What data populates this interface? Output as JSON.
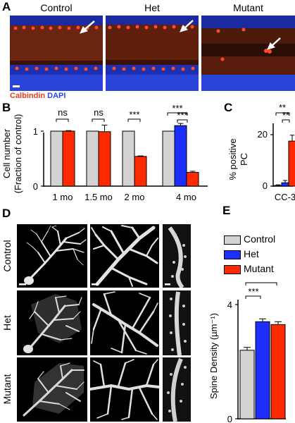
{
  "panels": {
    "A": {
      "label": "A",
      "columns": [
        "Control",
        "Het",
        "Mutant"
      ],
      "stain_calbindin": "Calbindin",
      "stain_dapi": "DAPI",
      "colors": {
        "calbindin": "#e83a1f",
        "dapi": "#2446ff",
        "background": "#2a0e08"
      }
    },
    "B": {
      "label": "B",
      "ylabel_line1": "Cell number",
      "ylabel_line2": "(Fraction of control)",
      "yticks": [
        "0",
        "1"
      ],
      "significance": [
        "ns",
        "ns",
        "***",
        "***",
        "***"
      ]
    },
    "C": {
      "label": "C",
      "ylabel_line1": "% positive",
      "ylabel_line2": "PC",
      "yticks": [
        "0",
        "20"
      ],
      "significance": [
        "**",
        "**"
      ]
    },
    "D": {
      "label": "D",
      "rows": [
        "Control",
        "Het",
        "Mutant"
      ]
    },
    "E": {
      "label": "E",
      "ylabel": "Spine Density (µm⁻¹)",
      "yticks": [
        "0",
        "4"
      ],
      "significance": [
        "***",
        "***"
      ],
      "legend": [
        "Control",
        "Het",
        "Mutant"
      ]
    }
  },
  "colors": {
    "control": "#d3d3d3",
    "het": "#1c2fff",
    "mutant": "#ff2a00"
  },
  "chart_data": [
    {
      "panel": "B",
      "type": "bar",
      "categories": [
        "1 mo",
        "1.5 mo",
        "2 mo",
        "4 mo"
      ],
      "series": [
        {
          "name": "Control",
          "values": [
            1.0,
            1.0,
            1.0,
            1.0
          ]
        },
        {
          "name": "Het",
          "values": [
            null,
            null,
            null,
            1.1
          ]
        },
        {
          "name": "Mutant",
          "values": [
            1.0,
            0.99,
            0.54,
            0.25
          ]
        }
      ],
      "errors": {
        "Het": [
          null,
          null,
          null,
          0.04
        ],
        "Mutant": [
          0.01,
          0.12,
          0.01,
          0.02
        ]
      },
      "ylim": [
        0,
        1.25
      ]
    },
    {
      "panel": "C",
      "type": "bar",
      "categories": [
        "CC-3"
      ],
      "series": [
        {
          "name": "Control",
          "values": [
            0.3
          ]
        },
        {
          "name": "Het",
          "values": [
            1.3
          ]
        },
        {
          "name": "Mutant",
          "values": [
            17.5
          ]
        }
      ],
      "errors": [
        0.2,
        0.9,
        2.3
      ],
      "ylim": [
        0,
        25
      ]
    },
    {
      "panel": "E",
      "type": "bar",
      "categories": [
        ""
      ],
      "series": [
        {
          "name": "Control",
          "values": [
            2.4
          ]
        },
        {
          "name": "Het",
          "values": [
            3.4
          ]
        },
        {
          "name": "Mutant",
          "values": [
            3.3
          ]
        }
      ],
      "errors": [
        0.1,
        0.1,
        0.1
      ],
      "ylim": [
        0,
        4
      ]
    }
  ]
}
